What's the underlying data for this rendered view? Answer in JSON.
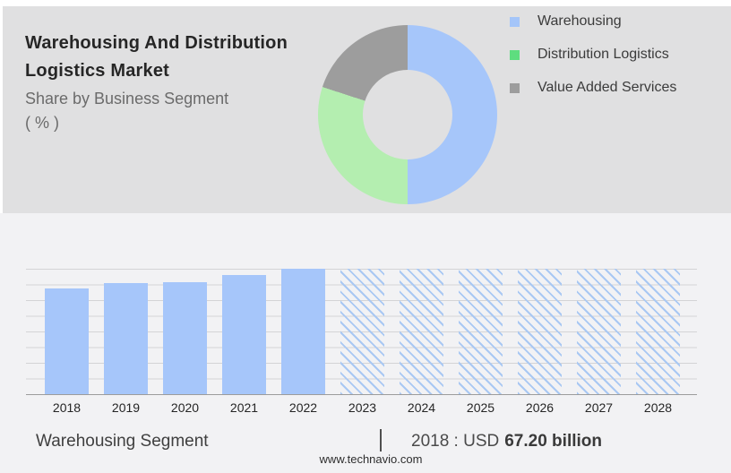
{
  "header": {
    "title_line1": "Warehousing And Distribution",
    "title_line2": "Logistics Market",
    "subtitle_line1": "Share by Business Segment",
    "subtitle_line2": "( % )"
  },
  "legend": {
    "items": [
      {
        "label": "Warehousing",
        "color": "#a4c5f9"
      },
      {
        "label": "Distribution Logistics",
        "color": "#5edd7f"
      },
      {
        "label": "Value Added Services",
        "color": "#9d9d9d"
      }
    ]
  },
  "chart_data": [
    {
      "type": "pie",
      "subtype": "donut",
      "title": "Share by Business Segment ( % )",
      "labels": [
        "Warehousing",
        "Distribution Logistics",
        "Value Added Services"
      ],
      "values": [
        50,
        30,
        20
      ],
      "colors": [
        "#a6c6fa",
        "#b4eeb0",
        "#9d9d9d"
      ],
      "hole_ratio": 0.5,
      "legend_position": "right"
    },
    {
      "type": "bar",
      "title": "",
      "xlabel": "",
      "ylabel": "",
      "categories": [
        "2018",
        "2019",
        "2020",
        "2021",
        "2022",
        "2023",
        "2024",
        "2025",
        "2026",
        "2027",
        "2028"
      ],
      "values": [
        67.2,
        70.4,
        71.0,
        75.2,
        79.4,
        79.4,
        79.4,
        79.4,
        79.4,
        79.4,
        79.4
      ],
      "values_unit": "USD billion",
      "forecast_from_index": 5,
      "forecast_style": "diagonal-hatch",
      "solid_color": "#a6c6fa",
      "hatch_color": "#a9c8f3",
      "ylim": [
        0,
        79.4
      ],
      "gridlines": true,
      "legend_position": "none"
    }
  ],
  "footer": {
    "segment_label": "Warehousing Segment",
    "separator": "|",
    "value_prefix": "2018 : USD",
    "value_bold": "67.20 billion",
    "website": "www.technavio.com"
  }
}
